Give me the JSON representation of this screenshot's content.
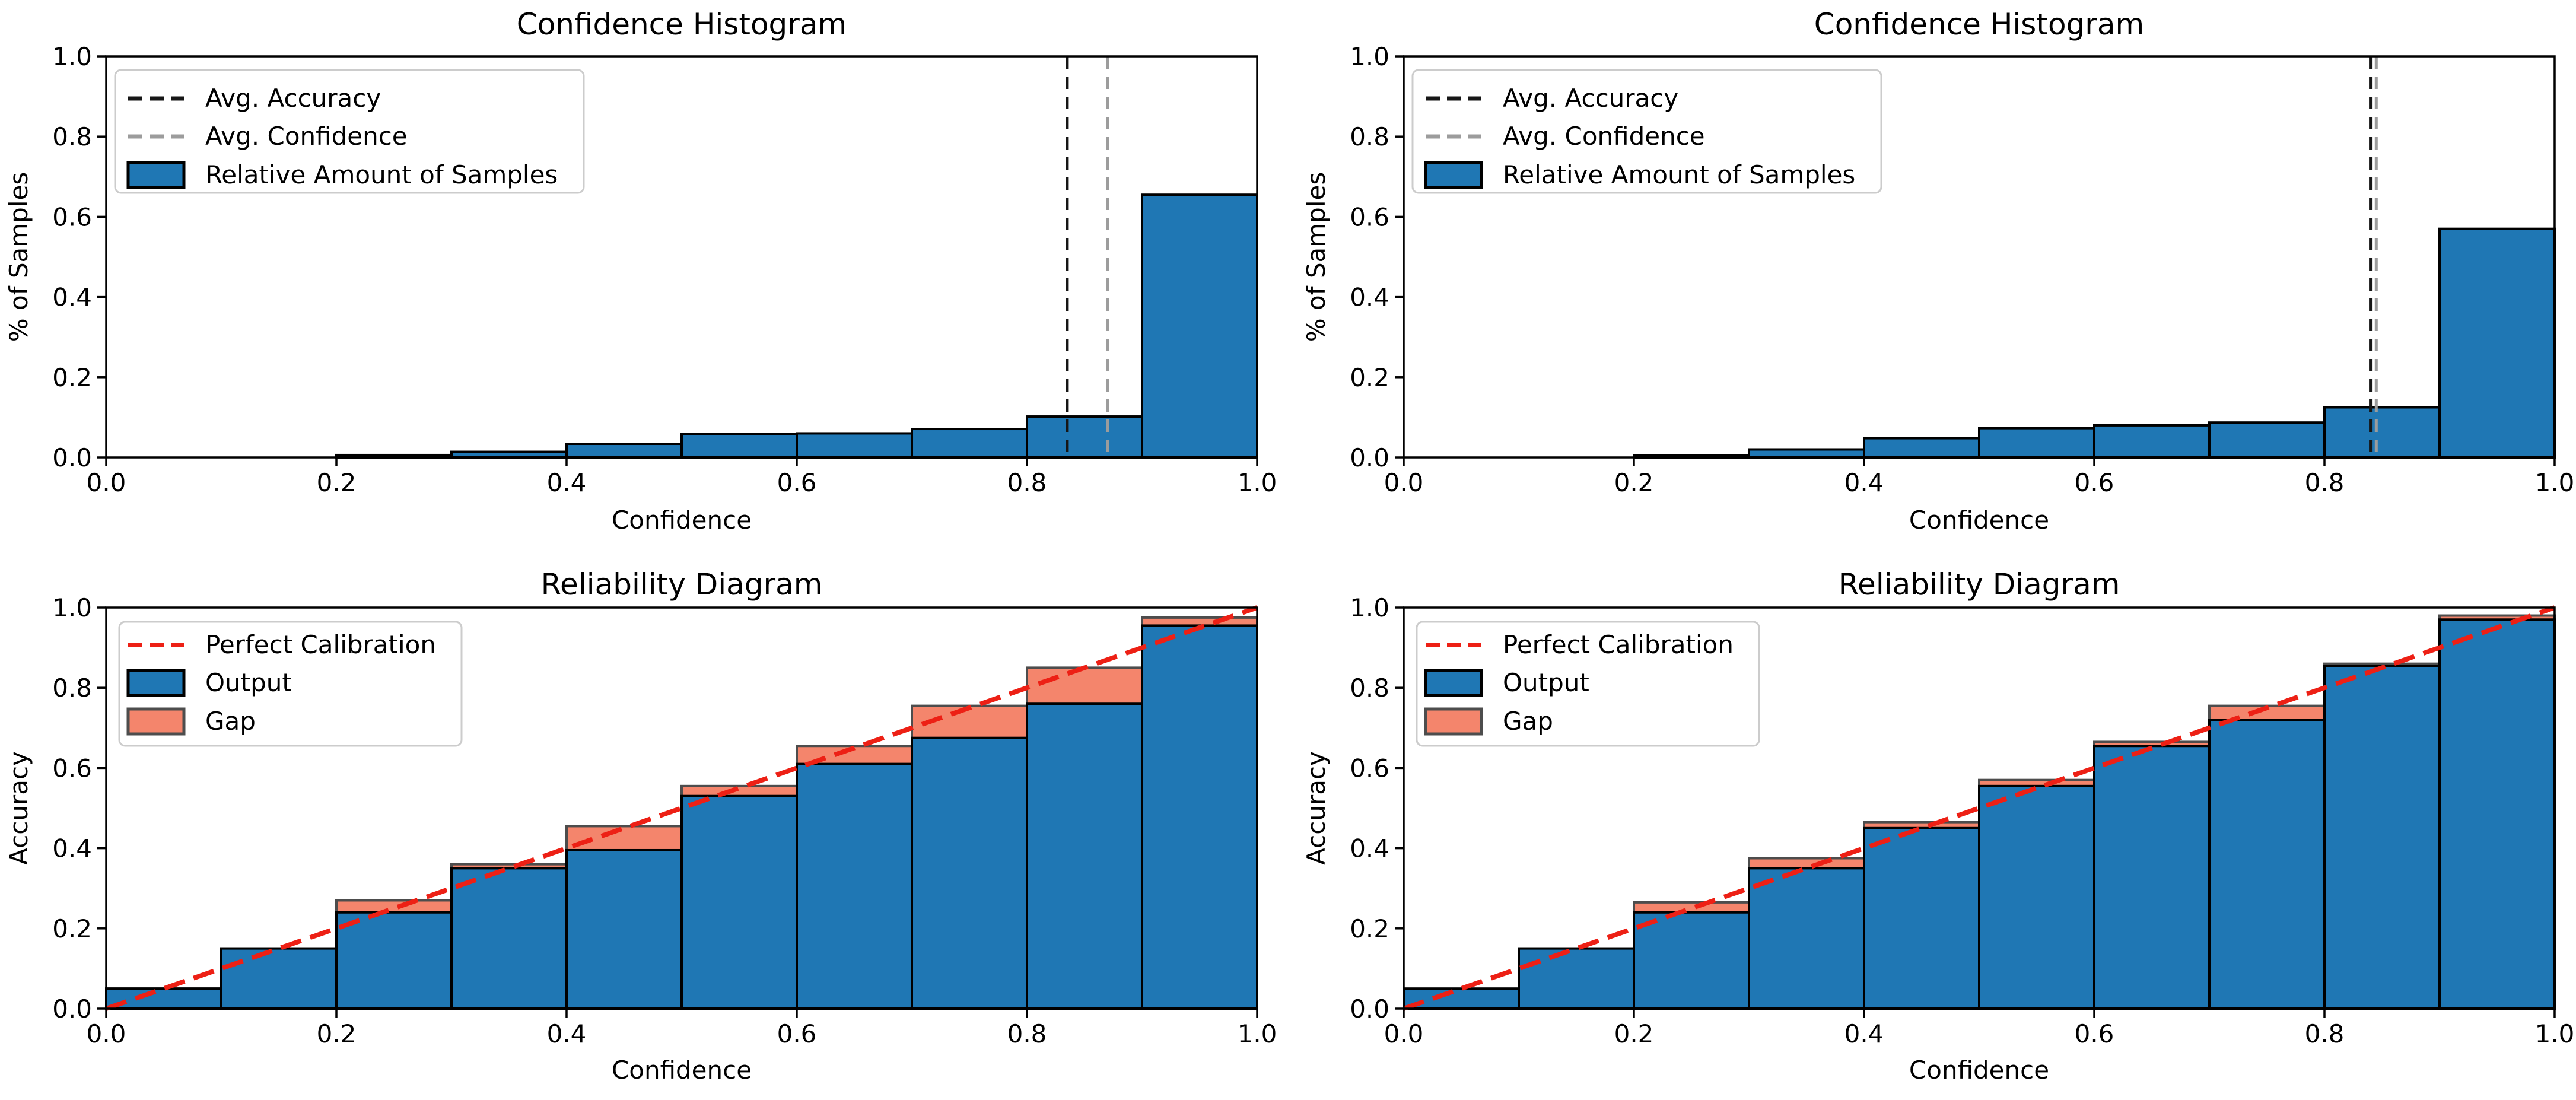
{
  "colors": {
    "background": "#FFFFFF",
    "output_blue": "#1F77B4",
    "bar_edge": "#000000",
    "gap_fill": "#F4856C",
    "gap_edge": "#4D4D4D",
    "perfect_line": "#ED2015",
    "avg_accuracy_line": "#161616",
    "avg_confidence_line": "#9C9C9C",
    "axis": "#000000",
    "legend_border": "#CCCCCC"
  },
  "chart_data": [
    {
      "type": "bar",
      "panel": "top-left",
      "title": "Confidence Histogram",
      "xlabel": "Confidence",
      "ylabel": "% of Samples",
      "xlim": [
        0,
        1
      ],
      "ylim": [
        0,
        1
      ],
      "grid": false,
      "legend_position": "upper left",
      "xtick_labels": [
        "0.0",
        "0.2",
        "0.4",
        "0.6",
        "0.8",
        "1.0"
      ],
      "ytick_labels": [
        "0.0",
        "0.2",
        "0.4",
        "0.6",
        "0.8",
        "1.0"
      ],
      "bin_edges": [
        0.0,
        0.1,
        0.2,
        0.3,
        0.4,
        0.5,
        0.6,
        0.7,
        0.8,
        0.9,
        1.0
      ],
      "values": [
        0.0,
        0.0,
        0.006,
        0.014,
        0.034,
        0.058,
        0.06,
        0.071,
        0.102,
        0.655
      ],
      "avg_accuracy": 0.835,
      "avg_confidence": 0.87,
      "legend": [
        "Avg. Accuracy",
        "Avg. Confidence",
        "Relative Amount of Samples"
      ]
    },
    {
      "type": "bar",
      "panel": "top-right",
      "title": "Confidence Histogram",
      "xlabel": "Confidence",
      "ylabel": "% of Samples",
      "xlim": [
        0,
        1
      ],
      "ylim": [
        0,
        1
      ],
      "grid": false,
      "legend_position": "upper left",
      "xtick_labels": [
        "0.0",
        "0.2",
        "0.4",
        "0.6",
        "0.8",
        "1.0"
      ],
      "ytick_labels": [
        "0.0",
        "0.2",
        "0.4",
        "0.6",
        "0.8",
        "1.0"
      ],
      "bin_edges": [
        0.0,
        0.1,
        0.2,
        0.3,
        0.4,
        0.5,
        0.6,
        0.7,
        0.8,
        0.9,
        1.0
      ],
      "values": [
        0.0,
        0.0,
        0.005,
        0.02,
        0.048,
        0.073,
        0.08,
        0.087,
        0.125,
        0.57
      ],
      "avg_accuracy": 0.84,
      "avg_confidence": 0.845,
      "legend": [
        "Avg. Accuracy",
        "Avg. Confidence",
        "Relative Amount of Samples"
      ]
    },
    {
      "type": "bar",
      "panel": "bottom-left",
      "title": "Reliability Diagram",
      "xlabel": "Confidence",
      "ylabel": "Accuracy",
      "xlim": [
        0,
        1
      ],
      "ylim": [
        0,
        1
      ],
      "grid": false,
      "legend_position": "upper left",
      "xtick_labels": [
        "0.0",
        "0.2",
        "0.4",
        "0.6",
        "0.8",
        "1.0"
      ],
      "ytick_labels": [
        "0.0",
        "0.2",
        "0.4",
        "0.6",
        "0.8",
        "1.0"
      ],
      "bin_edges": [
        0.0,
        0.1,
        0.2,
        0.3,
        0.4,
        0.5,
        0.6,
        0.7,
        0.8,
        0.9,
        1.0
      ],
      "series": [
        {
          "name": "Output",
          "values": [
            0.05,
            0.15,
            0.24,
            0.35,
            0.395,
            0.53,
            0.61,
            0.675,
            0.76,
            0.955
          ]
        },
        {
          "name": "Gap",
          "values": [
            0.05,
            0.15,
            0.27,
            0.36,
            0.455,
            0.555,
            0.655,
            0.755,
            0.85,
            0.975
          ]
        }
      ],
      "perfect_calibration_line": [
        [
          0,
          0
        ],
        [
          1,
          1
        ]
      ],
      "legend": [
        "Perfect Calibration",
        "Output",
        "Gap"
      ]
    },
    {
      "type": "bar",
      "panel": "bottom-right",
      "title": "Reliability Diagram",
      "xlabel": "Confidence",
      "ylabel": "Accuracy",
      "xlim": [
        0,
        1
      ],
      "ylim": [
        0,
        1
      ],
      "grid": false,
      "legend_position": "upper left",
      "xtick_labels": [
        "0.0",
        "0.2",
        "0.4",
        "0.6",
        "0.8",
        "1.0"
      ],
      "ytick_labels": [
        "0.0",
        "0.2",
        "0.4",
        "0.6",
        "0.8",
        "1.0"
      ],
      "bin_edges": [
        0.0,
        0.1,
        0.2,
        0.3,
        0.4,
        0.5,
        0.6,
        0.7,
        0.8,
        0.9,
        1.0
      ],
      "series": [
        {
          "name": "Output",
          "values": [
            0.05,
            0.15,
            0.24,
            0.35,
            0.45,
            0.555,
            0.655,
            0.72,
            0.855,
            0.97
          ]
        },
        {
          "name": "Gap",
          "values": [
            0.03,
            0.15,
            0.265,
            0.375,
            0.465,
            0.57,
            0.665,
            0.755,
            0.86,
            0.98
          ]
        }
      ],
      "perfect_calibration_line": [
        [
          0,
          0
        ],
        [
          1,
          1
        ]
      ],
      "legend": [
        "Perfect Calibration",
        "Output",
        "Gap"
      ]
    }
  ]
}
